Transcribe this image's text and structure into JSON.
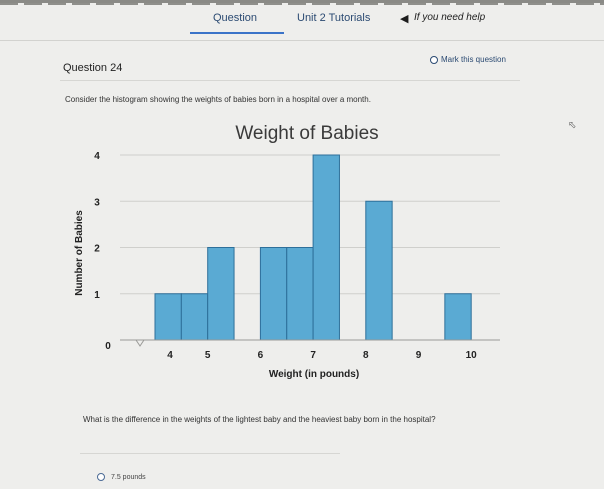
{
  "nav": {
    "tab_question": "Question",
    "tab_tutorials": "Unit 2 Tutorials",
    "help_icon": "◀",
    "help_note": "If you need help"
  },
  "question": {
    "number": "Question 24",
    "mark_label": "Mark this question",
    "prompt": "Consider the histogram showing the weights of babies born in a hospital over a month.",
    "text": "What is the difference in the weights of the lightest baby and the heaviest baby born in the hospital?"
  },
  "answers": [
    {
      "label": "7.5 pounds"
    }
  ],
  "icons": {
    "cursor": "cursor-icon"
  },
  "colors": {
    "bar_fill": "#5aaad3",
    "bar_stroke": "#2d6f9a",
    "link": "#2b4a72",
    "accent": "#3a73c8"
  },
  "chart_data": {
    "type": "bar",
    "title": "Weight of Babies",
    "xlabel": "Weight (in pounds)",
    "ylabel": "Number of Babies",
    "bin_width": 0.5,
    "x_ticks": [
      "4",
      "5",
      "6",
      "7",
      "8",
      "9",
      "10"
    ],
    "y_ticks": [
      "0",
      "1",
      "2",
      "3",
      "4"
    ],
    "bins": [
      {
        "start": 4.0,
        "count": 1
      },
      {
        "start": 4.5,
        "count": 1
      },
      {
        "start": 5.0,
        "count": 2
      },
      {
        "start": 5.5,
        "count": 0
      },
      {
        "start": 6.0,
        "count": 2
      },
      {
        "start": 6.5,
        "count": 2
      },
      {
        "start": 7.0,
        "count": 4
      },
      {
        "start": 7.5,
        "count": 0
      },
      {
        "start": 8.0,
        "count": 3
      },
      {
        "start": 8.5,
        "count": 0
      },
      {
        "start": 9.0,
        "count": 0
      },
      {
        "start": 9.5,
        "count": 1
      }
    ],
    "xlim": [
      4,
      10
    ],
    "ylim": [
      0,
      4
    ],
    "grid": true
  }
}
